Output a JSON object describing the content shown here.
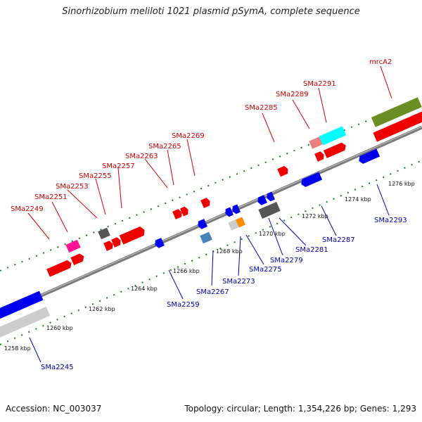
{
  "title": "Sinorhizobium meliloti 1021 plasmid pSymA, complete sequence",
  "accession": "Accession: NC_003037",
  "summary": "Topology: circular; Length: 1,354,226 bp; Genes: 1,293",
  "colors": {
    "forward_label": "#cc0000",
    "reverse_label": "#0000aa",
    "backbone": "#7a7a7a",
    "tick": "#1a7a1a"
  },
  "kbp_labels": [
    "1258 kbp",
    "1260 kbp",
    "1262 kbp",
    "1264 kbp",
    "1266 kbp",
    "1268 kbp",
    "1270 kbp",
    "1272 kbp",
    "1274 kbp",
    "1276 kbp"
  ],
  "forward_genes": [
    "SMa2249",
    "SMa2251",
    "SMa2253",
    "SMa2255",
    "SMa2257",
    "SMa2263",
    "SMa2265",
    "SMa2269",
    "SMa2285",
    "SMa2289",
    "SMa2291",
    "mrcA2"
  ],
  "reverse_genes": [
    "SMa2245",
    "SMa2259",
    "SMa2267",
    "SMa2273",
    "SMa2275",
    "SMa2279",
    "SMa2281",
    "SMa2287",
    "SMa2293"
  ]
}
